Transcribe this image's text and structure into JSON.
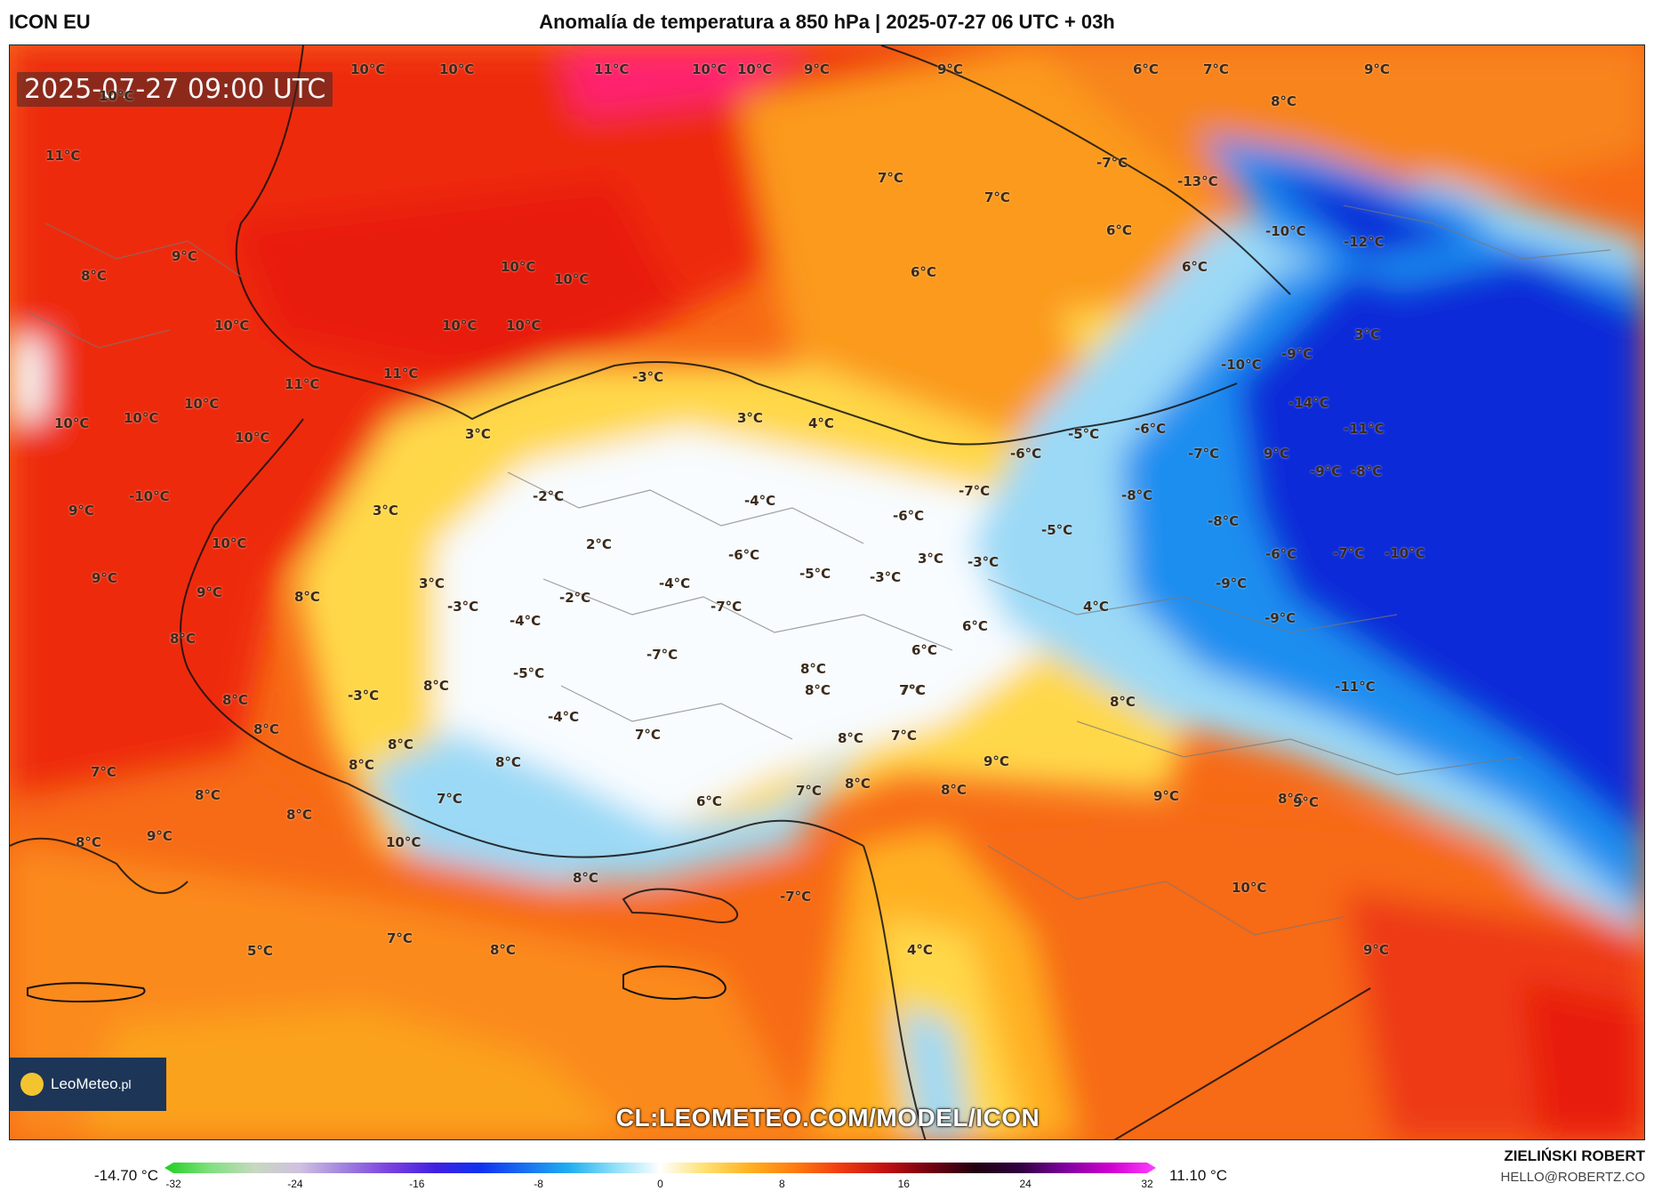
{
  "header": {
    "model": "ICON EU",
    "title": "Anomalía de temperatura a 850 hPa | 2025-07-27 06 UTC + 03h"
  },
  "map": {
    "timestamp": "2025-07-27 09:00 UTC",
    "url": "CL:LEOMETEO.COM/MODEL/ICON",
    "logo": {
      "brand": "LeoMeteo",
      "suffix": ".pl"
    },
    "labels": [
      {
        "t": "10°C"
      },
      {
        "t": "10°C"
      },
      {
        "t": "11°C"
      },
      {
        "t": "10°C"
      },
      {
        "t": "10°C"
      },
      {
        "t": "9°C"
      },
      {
        "t": "9°C"
      },
      {
        "t": "6°C"
      },
      {
        "t": "7°C"
      },
      {
        "t": "9°C"
      },
      {
        "t": "10°C"
      },
      {
        "t": "11°C"
      },
      {
        "t": "8°C"
      },
      {
        "t": "-7°C"
      },
      {
        "t": "-13°C"
      },
      {
        "t": "7°C"
      },
      {
        "t": "7°C"
      },
      {
        "t": "6°C"
      },
      {
        "t": "-10°C"
      },
      {
        "t": "-12°C"
      },
      {
        "t": "9°C"
      },
      {
        "t": "8°C"
      },
      {
        "t": "10°C"
      },
      {
        "t": "10°C"
      },
      {
        "t": "6°C"
      },
      {
        "t": "6°C"
      },
      {
        "t": "10°C"
      },
      {
        "t": "10°C"
      },
      {
        "t": "10°C"
      },
      {
        "t": "3°C"
      },
      {
        "t": "11°C"
      },
      {
        "t": "11°C"
      },
      {
        "t": "-3°C"
      },
      {
        "t": "-9°C"
      },
      {
        "t": "-10°C"
      },
      {
        "t": "10°C"
      },
      {
        "t": "10°C"
      },
      {
        "t": "10°C"
      },
      {
        "t": "3°C"
      },
      {
        "t": "3°C"
      },
      {
        "t": "4°C"
      },
      {
        "t": "-5°C"
      },
      {
        "t": "-6°C"
      },
      {
        "t": "-6°C"
      },
      {
        "t": "-7°C"
      },
      {
        "t": "-14°C"
      },
      {
        "t": "-11°C"
      },
      {
        "t": "10°C"
      },
      {
        "t": "-10°C"
      },
      {
        "t": "9°C"
      },
      {
        "t": "-2°C"
      },
      {
        "t": "-4°C"
      },
      {
        "t": "-7°C"
      },
      {
        "t": "-8°C"
      },
      {
        "t": "-9°C"
      },
      {
        "t": "9°C"
      },
      {
        "t": "-8°C"
      },
      {
        "t": "3°C"
      },
      {
        "t": "-6°C"
      },
      {
        "t": "-5°C"
      },
      {
        "t": "-8°C"
      },
      {
        "t": "10°C"
      },
      {
        "t": "2°C"
      },
      {
        "t": "-6°C"
      },
      {
        "t": "3°C"
      },
      {
        "t": "-3°C"
      },
      {
        "t": "-6°C"
      },
      {
        "t": "-7°C"
      },
      {
        "t": "-10°C"
      },
      {
        "t": "9°C"
      },
      {
        "t": "3°C"
      },
      {
        "t": "-5°C"
      },
      {
        "t": "-3°C"
      },
      {
        "t": "-9°C"
      },
      {
        "t": "9°C"
      },
      {
        "t": "8°C"
      },
      {
        "t": "-4°C"
      },
      {
        "t": "-2°C"
      },
      {
        "t": "-7°C"
      },
      {
        "t": "4°C"
      },
      {
        "t": "-9°C"
      },
      {
        "t": "-3°C"
      },
      {
        "t": "-4°C"
      },
      {
        "t": "6°C"
      },
      {
        "t": "8°C"
      },
      {
        "t": "-7°C"
      },
      {
        "t": "6°C"
      },
      {
        "t": "-5°C"
      },
      {
        "t": "8°C"
      },
      {
        "t": "-11°C"
      },
      {
        "t": "8°C"
      },
      {
        "t": "8°C"
      },
      {
        "t": "-3°C"
      },
      {
        "t": "7°C"
      },
      {
        "t": "8°C"
      },
      {
        "t": "-4°C"
      },
      {
        "t": "8°C"
      },
      {
        "t": "7°C"
      },
      {
        "t": "7°C"
      },
      {
        "t": "8°C"
      },
      {
        "t": "8°C"
      },
      {
        "t": "8°C"
      },
      {
        "t": "7°C"
      },
      {
        "t": "8°C"
      },
      {
        "t": "7°C"
      },
      {
        "t": "8°C"
      },
      {
        "t": "6°C"
      },
      {
        "t": "7°C"
      },
      {
        "t": "8°C"
      },
      {
        "t": "8°C"
      },
      {
        "t": "9°C"
      },
      {
        "t": "8°C"
      },
      {
        "t": "7°C"
      },
      {
        "t": "8°C"
      },
      {
        "t": "9°C"
      },
      {
        "t": "9°C"
      },
      {
        "t": "8°C"
      },
      {
        "t": "9°C"
      },
      {
        "t": "-7°C"
      },
      {
        "t": "10°C"
      },
      {
        "t": "8°C"
      },
      {
        "t": "10°C"
      },
      {
        "t": "8°C"
      },
      {
        "t": "5°C"
      },
      {
        "t": "7°C"
      },
      {
        "t": "8°C"
      },
      {
        "t": "4°C"
      },
      {
        "t": "9°C"
      }
    ]
  },
  "legend": {
    "min_label": "-14.70 °C",
    "max_label": "11.10 °C",
    "ticks": [
      "-32",
      "-24",
      "-16",
      "-8",
      "0",
      "8",
      "16",
      "24",
      "32"
    ],
    "range": [
      -32,
      32
    ],
    "colors": [
      "#1fcf1f",
      "#7fe07f",
      "#c8d8c0",
      "#d0c0e0",
      "#a080e0",
      "#7a40e0",
      "#4020e0",
      "#1030f0",
      "#1a70f0",
      "#20b0f0",
      "#90e0f8",
      "#ffffff",
      "#ffe070",
      "#ffb020",
      "#ff7a10",
      "#f03a10",
      "#c01010",
      "#700010",
      "#200010",
      "#300040",
      "#8000a0",
      "#d000d0",
      "#ff40ff"
    ]
  },
  "credit": {
    "author": "ZIELIŃSKI ROBERT",
    "email": "HELLO@ROBERTZ.CO"
  },
  "palette": {
    "deep_red": "#ee2a0e",
    "red": "#f4481a",
    "orange_red": "#f76a16",
    "orange": "#fb9a1c",
    "yellow": "#ffd84a",
    "white": "#f8fcff",
    "light_blue": "#9bd9f6",
    "blue": "#1e8ef0",
    "deep_blue": "#0a2cd8",
    "magenta": "#ff2070"
  }
}
